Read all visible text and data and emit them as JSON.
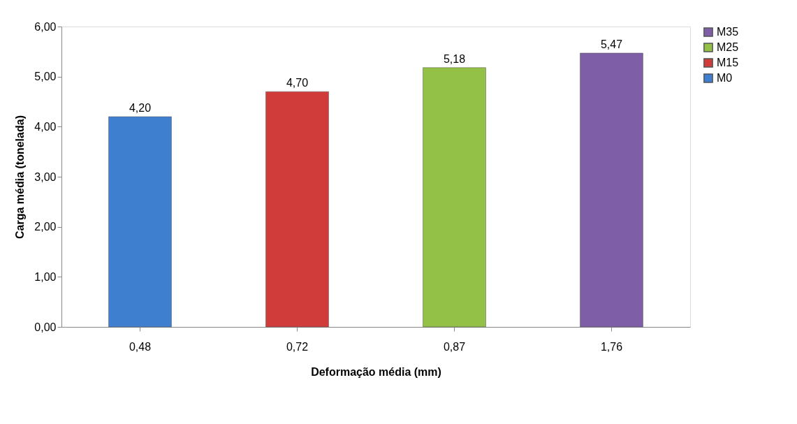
{
  "chart_data": {
    "type": "bar",
    "xlabel": "Deformação média (mm)",
    "ylabel": "Carga média (tonelada)",
    "categories": [
      "0,48",
      "0,72",
      "0,87",
      "1,76"
    ],
    "series": [
      {
        "name": "M0",
        "color": "#3f7fcf",
        "values": [
          4.2,
          null,
          null,
          null
        ],
        "value_labels": [
          "4,20",
          null,
          null,
          null
        ]
      },
      {
        "name": "M15",
        "color": "#d03c3a",
        "values": [
          null,
          4.7,
          null,
          null
        ],
        "value_labels": [
          null,
          "4,70",
          null,
          null
        ]
      },
      {
        "name": "M25",
        "color": "#93c047",
        "values": [
          null,
          null,
          5.18,
          null
        ],
        "value_labels": [
          null,
          null,
          "5,18",
          null
        ]
      },
      {
        "name": "M35",
        "color": "#7f5ea8",
        "values": [
          null,
          null,
          null,
          5.47
        ],
        "value_labels": [
          null,
          null,
          null,
          "5,47"
        ]
      }
    ],
    "ylim": [
      0,
      6
    ],
    "yticks": [
      {
        "value": 0,
        "label": "0,00"
      },
      {
        "value": 1,
        "label": "1,00"
      },
      {
        "value": 2,
        "label": "2,00"
      },
      {
        "value": 3,
        "label": "3,00"
      },
      {
        "value": 4,
        "label": "4,00"
      },
      {
        "value": 5,
        "label": "5,00"
      },
      {
        "value": 6,
        "label": "6,00"
      }
    ],
    "grid": false,
    "legend": "right"
  }
}
